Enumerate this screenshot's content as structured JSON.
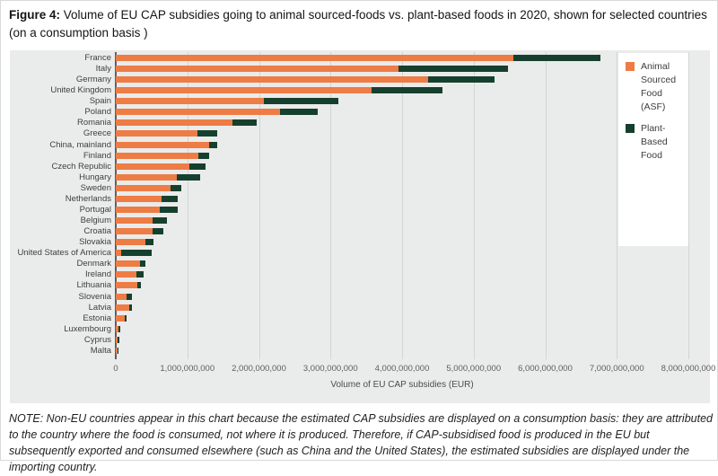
{
  "figure": {
    "label": "Figure 4:",
    "title": " Volume of EU CAP subsidies going to animal sourced-foods vs. plant-based foods in 2020, shown for selected countries (on a consumption basis )"
  },
  "note": "NOTE: Non-EU countries appear in this chart because the estimated CAP subsidies are displayed on a consumption basis: they are attributed to the country where the food is consumed, not where it is produced. Therefore, if CAP-subsidised food is produced in the EU but subsequently exported and consumed elsewhere (such as China and the United States), the estimated subsidies are displayed under the importing country.",
  "colors": {
    "asf": "#EE7C45",
    "pbf": "#16402E",
    "panel_bg": "#EAEBEB",
    "grid": "#D3D4D4",
    "zero_axis": "#5F6062",
    "legend_bg": "#FFFFFF"
  },
  "chart_data": {
    "type": "bar",
    "orientation": "horizontal",
    "stacked": true,
    "grid": true,
    "xlabel": "Volume of EU CAP subsidies (EUR)",
    "xlim": [
      0,
      8000000000
    ],
    "x_ticks": [
      {
        "value": 0,
        "label": "0"
      },
      {
        "value": 1000000000,
        "label": "1,000,000,000"
      },
      {
        "value": 2000000000,
        "label": "2,000,000,000"
      },
      {
        "value": 3000000000,
        "label": "3,000,000,000"
      },
      {
        "value": 4000000000,
        "label": "4,000,000,000"
      },
      {
        "value": 5000000000,
        "label": "5,000,000,000"
      },
      {
        "value": 6000000000,
        "label": "6,000,000,000"
      },
      {
        "value": 7000000000,
        "label": "7,000,000,000"
      },
      {
        "value": 8000000000,
        "label": "8,000,000,000"
      }
    ],
    "legend": {
      "position": "top-right",
      "series": [
        {
          "name": "Animal Sourced Food (ASF)",
          "color": "#EE7C45"
        },
        {
          "name": "Plant-Based Food",
          "color": "#16402E"
        }
      ]
    },
    "categories": [
      "France",
      "Italy",
      "Germany",
      "United Kingdom",
      "Spain",
      "Poland",
      "Romania",
      "Greece",
      "China, mainland",
      "Finland",
      "Czech Republic",
      "Hungary",
      "Sweden",
      "Netherlands",
      "Portugal",
      "Belgium",
      "Croatia",
      "Slovakia",
      "United States of America",
      "Denmark",
      "Ireland",
      "Lithuania",
      "Slovenia",
      "Latvia",
      "Estonia",
      "Luxembourg",
      "Cyprus",
      "Malta"
    ],
    "series": [
      {
        "name": "Animal Sourced Food (ASF)",
        "values": [
          5550000000,
          3950000000,
          4360000000,
          3570000000,
          2070000000,
          2290000000,
          1630000000,
          1140000000,
          1310000000,
          1150000000,
          1030000000,
          850000000,
          770000000,
          640000000,
          610000000,
          510000000,
          520000000,
          420000000,
          75000000,
          340000000,
          290000000,
          300000000,
          150000000,
          190000000,
          120000000,
          40000000,
          30000000,
          30000000
        ]
      },
      {
        "name": "Plant-Based Food",
        "values": [
          1220000000,
          1530000000,
          930000000,
          990000000,
          1040000000,
          530000000,
          340000000,
          280000000,
          110000000,
          160000000,
          220000000,
          330000000,
          150000000,
          220000000,
          250000000,
          200000000,
          150000000,
          110000000,
          430000000,
          80000000,
          100000000,
          50000000,
          80000000,
          30000000,
          30000000,
          25000000,
          20000000,
          5000000
        ]
      }
    ]
  }
}
